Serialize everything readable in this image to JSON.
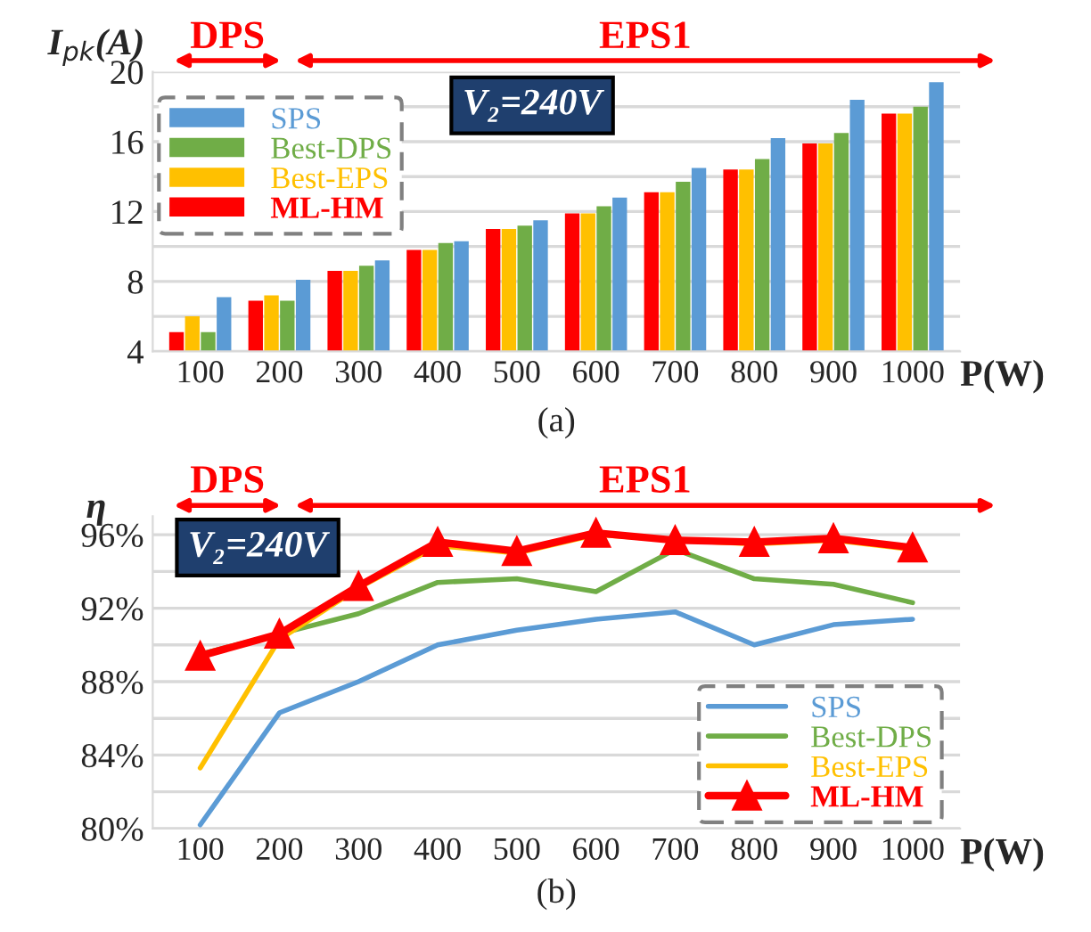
{
  "chart_data": [
    {
      "type": "bar",
      "ylabel": "I$_{pk}$(A)",
      "xlabel": "P(W)",
      "categories": [
        "100",
        "200",
        "300",
        "400",
        "500",
        "600",
        "700",
        "800",
        "900",
        "1000"
      ],
      "series": [
        {
          "name": "ML-HM",
          "color": "#ff0000",
          "values": [
            5.1,
            6.9,
            8.6,
            9.8,
            11.0,
            11.9,
            13.1,
            14.4,
            15.9,
            17.6
          ]
        },
        {
          "name": "Best-EPS",
          "color": "#ffc000",
          "values": [
            6.0,
            7.2,
            8.6,
            9.8,
            11.0,
            11.9,
            13.1,
            14.4,
            15.9,
            17.6
          ]
        },
        {
          "name": "Best-DPS",
          "color": "#70ad47",
          "values": [
            5.1,
            6.9,
            8.9,
            10.2,
            11.2,
            12.3,
            13.7,
            15.0,
            16.5,
            18.0
          ]
        },
        {
          "name": "SPS",
          "color": "#5b9bd5",
          "values": [
            7.1,
            8.1,
            9.2,
            10.3,
            11.5,
            12.8,
            14.5,
            16.2,
            18.4,
            19.4
          ]
        }
      ],
      "ylim": [
        4,
        20
      ],
      "yticks": [
        4,
        8,
        12,
        16,
        20
      ],
      "grid": "y",
      "legend": "top left",
      "annotations": [
        "DPS",
        "EPS1",
        "V₂=240V",
        "(a)"
      ]
    },
    {
      "type": "line",
      "ylabel": "η",
      "xlabel": "P(W)",
      "categories": [
        "100",
        "200",
        "300",
        "400",
        "500",
        "600",
        "700",
        "800",
        "900",
        "1000"
      ],
      "series": [
        {
          "name": "SPS",
          "color": "#5b9bd5",
          "values": [
            80.2,
            86.3,
            88.0,
            90.0,
            90.8,
            91.4,
            91.8,
            90.0,
            91.1,
            91.4
          ]
        },
        {
          "name": "Best-DPS",
          "color": "#70ad47",
          "values": [
            89.5,
            90.6,
            91.7,
            93.4,
            93.6,
            92.9,
            95.2,
            93.6,
            93.3,
            92.3
          ]
        },
        {
          "name": "Best-EPS",
          "color": "#ffc000",
          "values": [
            83.3,
            90.3,
            93.1,
            95.4,
            95.0,
            96.0,
            95.7,
            95.5,
            95.7,
            95.2
          ]
        },
        {
          "name": "ML-HM",
          "color": "#ff0000",
          "marker": "triangle",
          "values": [
            89.4,
            90.6,
            93.2,
            95.6,
            95.1,
            96.1,
            95.7,
            95.6,
            95.8,
            95.3
          ]
        }
      ],
      "ylim": [
        80,
        97
      ],
      "yticks": [
        {
          "value": 80,
          "label": "80%"
        },
        {
          "value": 84,
          "label": "84%"
        },
        {
          "value": 88,
          "label": "88%"
        },
        {
          "value": 92,
          "label": "92%"
        },
        {
          "value": 96,
          "label": "96%"
        }
      ],
      "grid": "y",
      "legend": "bottom right",
      "annotations": [
        "DPS",
        "EPS1",
        "V₂=240V",
        "(b)"
      ]
    }
  ]
}
